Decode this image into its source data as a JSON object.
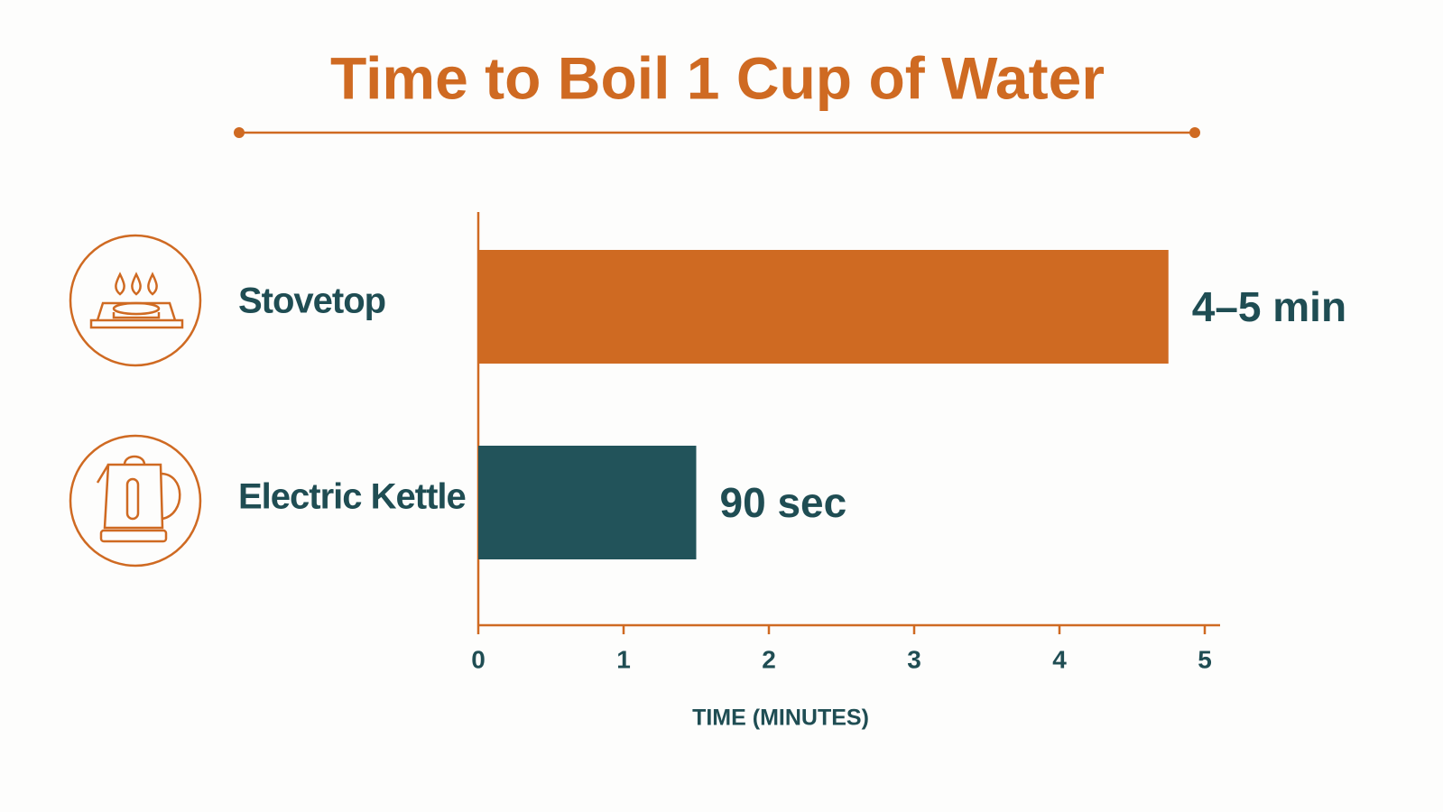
{
  "chart_data": {
    "type": "bar",
    "orientation": "horizontal",
    "title": "Time to Boil 1 Cup of Water",
    "categories": [
      "Stovetop",
      "Electric Kettle"
    ],
    "values": [
      4.75,
      1.5
    ],
    "value_labels": [
      "4–5 min",
      "90 sec"
    ],
    "colors": [
      "#cf6a22",
      "#22535a"
    ],
    "xlabel": "TIME (MINUTES)",
    "xlim": [
      0,
      5
    ],
    "xticks": [
      0,
      1,
      2,
      3,
      4,
      5
    ],
    "grid": false
  }
}
